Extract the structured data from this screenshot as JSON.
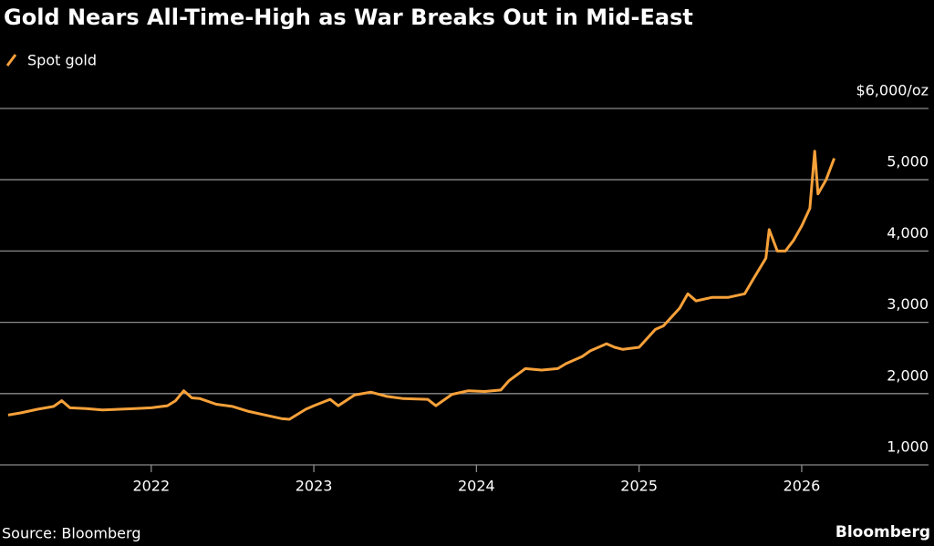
{
  "chart_data": {
    "type": "line",
    "title": "Gold Nears All-Time-High as War Breaks Out in Mid-East",
    "source": "Source: Bloomberg",
    "brand": "Bloomberg",
    "x": [
      2021.12,
      2021.2,
      2021.3,
      2021.4,
      2021.45,
      2021.5,
      2021.6,
      2021.7,
      2021.8,
      2021.9,
      2022.0,
      2022.1,
      2022.15,
      2022.2,
      2022.25,
      2022.3,
      2022.4,
      2022.5,
      2022.6,
      2022.7,
      2022.8,
      2022.85,
      2022.95,
      2023.0,
      2023.1,
      2023.15,
      2023.25,
      2023.35,
      2023.45,
      2023.55,
      2023.7,
      2023.75,
      2023.85,
      2023.95,
      2024.05,
      2024.15,
      2024.2,
      2024.3,
      2024.4,
      2024.5,
      2024.55,
      2024.65,
      2024.7,
      2024.8,
      2024.85,
      2024.9,
      2025.0,
      2025.1,
      2025.15,
      2025.25,
      2025.3,
      2025.35,
      2025.45,
      2025.55,
      2025.65,
      2025.7,
      2025.78,
      2025.8,
      2025.85,
      2025.9,
      2025.95,
      2026.0,
      2026.05,
      2026.08,
      2026.1,
      2026.15,
      2026.2
    ],
    "series": [
      {
        "name": "Spot gold",
        "color": "#f7a13a",
        "values": [
          1700,
          1730,
          1780,
          1820,
          1900,
          1800,
          1790,
          1770,
          1780,
          1790,
          1800,
          1830,
          1900,
          2040,
          1940,
          1930,
          1850,
          1820,
          1750,
          1700,
          1650,
          1640,
          1780,
          1830,
          1920,
          1830,
          1980,
          2020,
          1960,
          1930,
          1920,
          1830,
          1990,
          2040,
          2030,
          2050,
          2180,
          2350,
          2330,
          2350,
          2420,
          2520,
          2600,
          2700,
          2650,
          2620,
          2650,
          2900,
          2950,
          3200,
          3400,
          3300,
          3350,
          3350,
          3400,
          3600,
          3900,
          4300,
          4000,
          4000,
          4150,
          4350,
          4600,
          5400,
          4800,
          5000,
          5300
        ]
      }
    ],
    "xlim": [
      2021.07,
      2026.78
    ],
    "xticks": [
      2022,
      2023,
      2024,
      2025,
      2026
    ],
    "ylim": [
      1000,
      6000
    ],
    "yticks": [
      {
        "value": 1000,
        "label": "1,000"
      },
      {
        "value": 2000,
        "label": "2,000"
      },
      {
        "value": 3000,
        "label": "3,000"
      },
      {
        "value": 4000,
        "label": "4,000"
      },
      {
        "value": 5000,
        "label": "5,000"
      },
      {
        "value": 6000,
        "label": "$6,000/oz"
      }
    ],
    "grid": true
  }
}
